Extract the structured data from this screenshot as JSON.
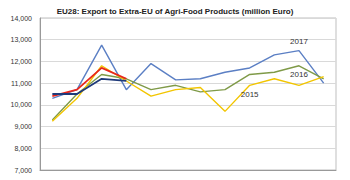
{
  "chart_data": {
    "type": "line",
    "title": "EU28: Export to Extra-EU of Agri-Food Products (million Euro)",
    "categories": [
      null,
      null,
      null,
      null,
      null,
      null,
      null,
      null,
      null,
      null,
      null,
      null
    ],
    "series": [
      {
        "name": "2017",
        "color": "#5b7fc4",
        "values": [
          10300,
          10700,
          12750,
          10700,
          11900,
          11150,
          11200,
          11500,
          11700,
          12300,
          12500,
          11000
        ]
      },
      {
        "name": "2016",
        "color": "#7f9a48",
        "values": [
          9300,
          10500,
          11400,
          11200,
          10700,
          10900,
          10600,
          10700,
          11400,
          11500,
          11800,
          11200
        ]
      },
      {
        "name": "2015",
        "color": "#f2c500",
        "values": [
          9250,
          10300,
          11800,
          11100,
          10400,
          10700,
          10800,
          9700,
          10900,
          11200,
          10900,
          11300
        ]
      },
      {
        "color": "#e8261c",
        "values": [
          10400,
          10700,
          11700,
          11200,
          null,
          null,
          null,
          null,
          null,
          null,
          null,
          null
        ]
      },
      {
        "color": "#1f3a7a",
        "values": [
          10500,
          10500,
          11200,
          11100,
          null,
          null,
          null,
          null,
          null,
          null,
          null,
          null
        ]
      }
    ],
    "ylim": [
      7000,
      14000
    ],
    "yticks": [
      {
        "value": 7000,
        "label": "7,000"
      },
      {
        "value": 8000,
        "label": "8,000"
      },
      {
        "value": 9000,
        "label": "9,000"
      },
      {
        "value": 10000,
        "label": "10,000"
      },
      {
        "value": 11000,
        "label": "11,000"
      },
      {
        "value": 12000,
        "label": "12,000"
      },
      {
        "value": 13000,
        "label": "13,000"
      },
      {
        "value": 14000,
        "label": "14,000"
      }
    ],
    "grid": true,
    "tick_labels": "y"
  }
}
